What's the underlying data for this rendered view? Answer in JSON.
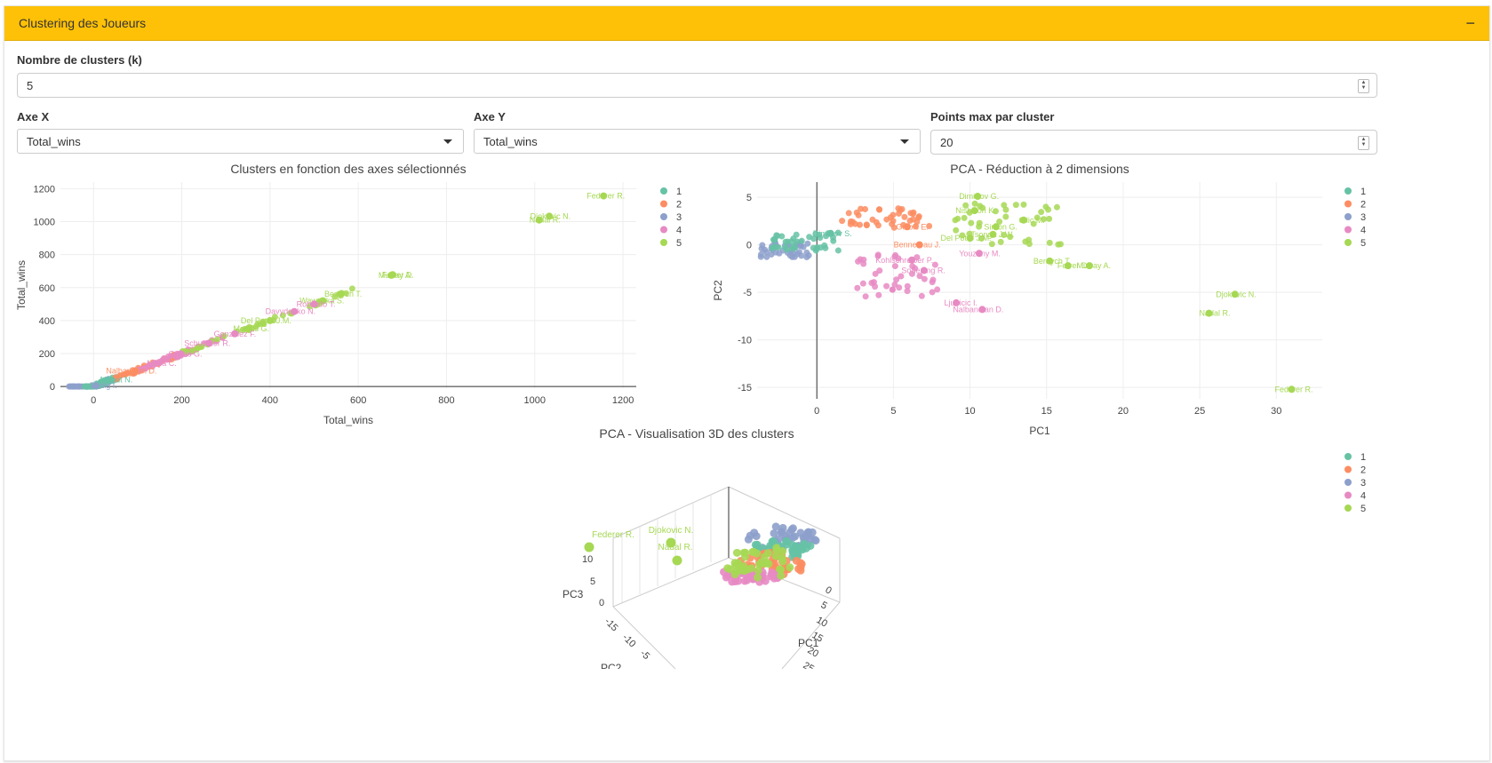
{
  "panel": {
    "title": "Clustering des Joueurs",
    "collapse_symbol": "−"
  },
  "controls": {
    "k_label": "Nombre de clusters (k)",
    "k_value": "5",
    "x_label": "Axe X",
    "x_value": "Total_wins",
    "y_label": "Axe Y",
    "y_value": "Total_wins",
    "max_label": "Points max par cluster",
    "max_value": "20"
  },
  "colors": {
    "1": "#66C2A5",
    "2": "#FC8D62",
    "3": "#8DA0CB",
    "4": "#E78AC3",
    "5": "#A6D854"
  },
  "legend": [
    "1",
    "2",
    "3",
    "4",
    "5"
  ],
  "chart_data": [
    {
      "type": "scatter",
      "title": "Clusters en fonction des axes sélectionnés",
      "xlabel": "Total_wins",
      "ylabel": "Total_wins",
      "xlim": [
        -75,
        1230
      ],
      "ylim": [
        -10,
        1240
      ],
      "xticks": [
        0,
        200,
        400,
        600,
        800,
        1000,
        1200
      ],
      "yticks": [
        0,
        200,
        400,
        600,
        800,
        1000,
        1200
      ],
      "grid": true,
      "legend_position": "right",
      "labeled_points": [
        {
          "label": "Federer R.",
          "x": 1156,
          "y": 1156,
          "cluster": "5"
        },
        {
          "label": "Djokovic N.",
          "x": 1033,
          "y": 1033,
          "cluster": "5"
        },
        {
          "label": "Nadal R.",
          "x": 1010,
          "y": 1010,
          "cluster": "5"
        },
        {
          "label": "Ferrer D.",
          "x": 678,
          "y": 678,
          "cluster": "5"
        },
        {
          "label": "Murray A.",
          "x": 675,
          "y": 675,
          "cluster": "5"
        },
        {
          "label": "Berdych T.",
          "x": 560,
          "y": 560,
          "cluster": "5"
        },
        {
          "label": "Wawrinka S.",
          "x": 520,
          "y": 520,
          "cluster": "5"
        },
        {
          "label": "Robredo T.",
          "x": 500,
          "y": 500,
          "cluster": "4"
        },
        {
          "label": "Davydenko N.",
          "x": 455,
          "y": 455,
          "cluster": "4"
        },
        {
          "label": "Del Potro J.M.",
          "x": 400,
          "y": 400,
          "cluster": "5"
        },
        {
          "label": "Monfils G.",
          "x": 350,
          "y": 350,
          "cluster": "5"
        },
        {
          "label": "Gonzalez F.",
          "x": 320,
          "y": 320,
          "cluster": "4"
        },
        {
          "label": "Schuettler R.",
          "x": 262,
          "y": 262,
          "cluster": "4"
        },
        {
          "label": "Canas G.",
          "x": 198,
          "y": 198,
          "cluster": "4"
        },
        {
          "label": "Moya C.",
          "x": 140,
          "y": 140,
          "cluster": "4"
        },
        {
          "label": "Nalbandian D.",
          "x": 95,
          "y": 95,
          "cluster": "2"
        },
        {
          "label": "Mahut N.",
          "x": 40,
          "y": 40,
          "cluster": "1"
        },
        {
          "label": "Dodig I.",
          "x": 5,
          "y": 5,
          "cluster": "3"
        }
      ]
    },
    {
      "type": "scatter",
      "title": "PCA - Réduction à 2 dimensions",
      "xlabel": "PC1",
      "ylabel": "PC2",
      "xlim": [
        -3.9,
        33
      ],
      "ylim": [
        -16.2,
        6.6
      ],
      "xticks": [
        0,
        5,
        10,
        15,
        20,
        25,
        30
      ],
      "yticks": [
        5,
        0,
        -5,
        -10,
        -15
      ],
      "grid": true,
      "legend_position": "right",
      "labeled_points": [
        {
          "label": "Dimitrov G.",
          "x": 10.5,
          "y": 5.1,
          "cluster": "5"
        },
        {
          "label": "Nishikori K.",
          "x": 10.3,
          "y": 3.6,
          "cluster": "5"
        },
        {
          "label": "Cilic M.",
          "x": 13.5,
          "y": 2.6,
          "cluster": "5"
        },
        {
          "label": "Simon G.",
          "x": 11.7,
          "y": 1.9,
          "cluster": "5"
        },
        {
          "label": "Tsonga J.W.",
          "x": 11.5,
          "y": 1.1,
          "cluster": "5"
        },
        {
          "label": "Del Potro J.M.",
          "x": 10.0,
          "y": 0.7,
          "cluster": "5"
        },
        {
          "label": "Youzhny M.",
          "x": 10.6,
          "y": -0.9,
          "cluster": "4"
        },
        {
          "label": "Berdych T.",
          "x": 15.2,
          "y": -1.7,
          "cluster": "5"
        },
        {
          "label": "Ferrer D.",
          "x": 16.4,
          "y": -2.2,
          "cluster": "5"
        },
        {
          "label": "Murray A.",
          "x": 17.8,
          "y": -2.2,
          "cluster": "5"
        },
        {
          "label": "Djokovic N.",
          "x": 27.3,
          "y": -5.2,
          "cluster": "5"
        },
        {
          "label": "Nadal R.",
          "x": 25.6,
          "y": -7.2,
          "cluster": "5"
        },
        {
          "label": "Federer R.",
          "x": 31.0,
          "y": -15.2,
          "cluster": "5"
        },
        {
          "label": "Benneteau J.",
          "x": 6.7,
          "y": 0.0,
          "cluster": "2"
        },
        {
          "label": "Gulbis E.",
          "x": 5.9,
          "y": 1.9,
          "cluster": "2"
        },
        {
          "label": "Nalbandian D.",
          "x": 10.8,
          "y": -6.8,
          "cluster": "4"
        },
        {
          "label": "Ljubicic I.",
          "x": 9.1,
          "y": -6.1,
          "cluster": "4"
        },
        {
          "label": "Soderling R.",
          "x": 7.0,
          "y": -2.7,
          "cluster": "4"
        },
        {
          "label": "Kohlschreiber P.",
          "x": 6.2,
          "y": -1.6,
          "cluster": "4"
        },
        {
          "label": "Dimitrov S.",
          "x": 0.9,
          "y": 1.2,
          "cluster": "1"
        }
      ]
    },
    {
      "type": "scatter3d",
      "title": "PCA - Visualisation 3D des clusters",
      "axes": [
        "PC1",
        "PC2",
        "PC3"
      ],
      "pc1_ticks": [
        0,
        5,
        10,
        15,
        20,
        25
      ],
      "pc2_ticks": [
        -15,
        -10,
        -5
      ],
      "pc3_ticks": [
        0,
        5,
        10
      ],
      "legend_position": "right",
      "labeled_points": [
        {
          "label": "Federer R.",
          "cluster": "5"
        },
        {
          "label": "Djokovic N.",
          "cluster": "5"
        },
        {
          "label": "Nadal R.",
          "cluster": "5"
        }
      ]
    }
  ]
}
